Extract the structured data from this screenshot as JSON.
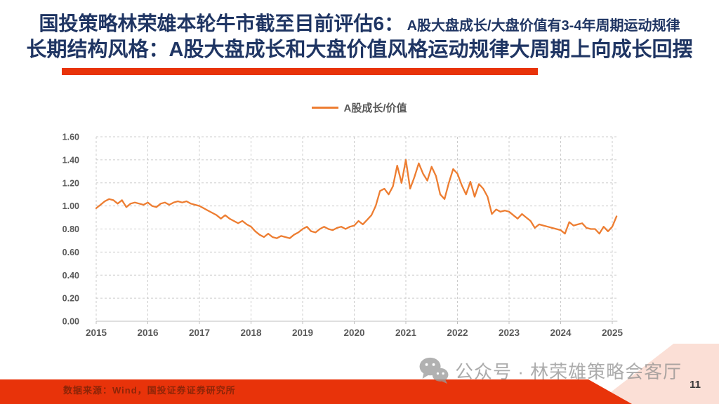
{
  "title": {
    "line1_main": "国投策略林荣雄本轮牛市截至目前评估6：",
    "line1_sub": "A股大盘成长/大盘价值有3-4年周期运动规律",
    "line2": "长期结构风格：A股大盘成长和大盘价值风格运动规律大周期上向成长回摆"
  },
  "footer": {
    "source_text": "数据来源：Wind，国投证券证券研究所"
  },
  "watermark": {
    "icon": "wechat-icon",
    "text": "公众号 · 林荣雄策略会客厅"
  },
  "page_number": "11",
  "colors": {
    "title_navy": "#1F3563",
    "accent_red": "#E8330A",
    "line_orange": "#ED7D31",
    "axis_label_gray": "#595959",
    "grid_gray": "#CCCCCC",
    "axis_gray": "#BFBFBF",
    "watermark_gray": "#8C8C8C",
    "footer_text_red": "#8C2508",
    "pink_triangle": "#FBDFD6"
  },
  "chart_data": {
    "type": "line",
    "title": "",
    "xlabel": "",
    "ylabel": "",
    "legend": [
      {
        "name": "A股成长/价值",
        "color": "#ED7D31"
      }
    ],
    "legend_position": "top-center",
    "grid": true,
    "grid_style": "dashed",
    "xlim": [
      2015,
      2025.1
    ],
    "ylim": [
      0,
      1.6
    ],
    "x_ticks": [
      2015,
      2016,
      2017,
      2018,
      2019,
      2020,
      2021,
      2022,
      2023,
      2024,
      2025
    ],
    "y_ticks": [
      0.0,
      0.2,
      0.4,
      0.6,
      0.8,
      1.0,
      1.2,
      1.4,
      1.6
    ],
    "y_tick_labels": [
      "0.00",
      "0.20",
      "0.40",
      "0.60",
      "0.80",
      "1.00",
      "1.20",
      "1.40",
      "1.60"
    ],
    "series": [
      {
        "name": "A股成长/价值",
        "color": "#ED7D31",
        "x_start_year": 2015.0,
        "x_step_years": 0.0833333,
        "values": [
          0.98,
          1.01,
          1.04,
          1.06,
          1.05,
          1.02,
          1.05,
          0.99,
          1.02,
          1.03,
          1.02,
          1.01,
          1.03,
          1.0,
          0.99,
          1.02,
          1.03,
          1.01,
          1.03,
          1.04,
          1.03,
          1.04,
          1.02,
          1.01,
          1.0,
          0.98,
          0.96,
          0.94,
          0.92,
          0.89,
          0.92,
          0.89,
          0.87,
          0.85,
          0.87,
          0.84,
          0.82,
          0.78,
          0.75,
          0.73,
          0.76,
          0.73,
          0.72,
          0.74,
          0.73,
          0.72,
          0.75,
          0.77,
          0.8,
          0.82,
          0.78,
          0.77,
          0.8,
          0.82,
          0.8,
          0.79,
          0.81,
          0.82,
          0.8,
          0.82,
          0.83,
          0.87,
          0.84,
          0.88,
          0.92,
          1.0,
          1.13,
          1.15,
          1.1,
          1.17,
          1.35,
          1.2,
          1.4,
          1.15,
          1.25,
          1.37,
          1.28,
          1.22,
          1.34,
          1.26,
          1.1,
          1.06,
          1.2,
          1.32,
          1.28,
          1.18,
          1.1,
          1.21,
          1.08,
          1.19,
          1.15,
          1.08,
          0.93,
          0.97,
          0.95,
          0.96,
          0.95,
          0.92,
          0.89,
          0.93,
          0.9,
          0.87,
          0.81,
          0.84,
          0.83,
          0.82,
          0.81,
          0.8,
          0.79,
          0.76,
          0.86,
          0.83,
          0.84,
          0.85,
          0.81,
          0.8,
          0.8,
          0.76,
          0.82,
          0.78,
          0.82,
          0.91
        ]
      }
    ]
  }
}
